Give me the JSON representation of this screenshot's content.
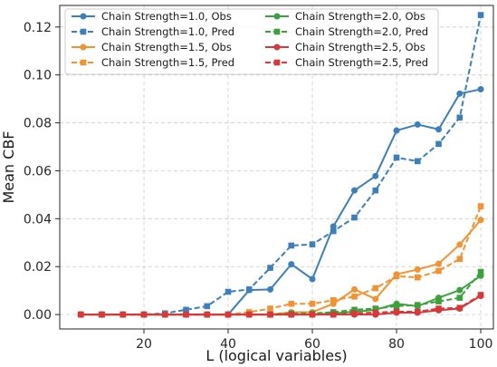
{
  "chart_data": {
    "type": "line",
    "xlabel": "L (logical variables)",
    "ylabel": "Mean CBF",
    "xlim": [
      0,
      103
    ],
    "ylim": [
      -0.006,
      0.129
    ],
    "xticks": [
      20,
      40,
      60,
      80,
      100
    ],
    "yticks": [
      0.0,
      0.02,
      0.04,
      0.06,
      0.08,
      0.1,
      0.12
    ],
    "ytick_labels": [
      "0.00",
      "0.02",
      "0.04",
      "0.06",
      "0.08",
      "0.10",
      "0.12"
    ],
    "grid": true,
    "legend_position": "top-left",
    "x": [
      5,
      10,
      15,
      20,
      25,
      30,
      35,
      40,
      45,
      50,
      55,
      60,
      65,
      70,
      75,
      80,
      85,
      90,
      95,
      100
    ],
    "series": [
      {
        "name": "Chain Strength=1.0, Obs",
        "color": "#3a7fbf",
        "style": "solid",
        "marker": "circle",
        "values": [
          0,
          0,
          0,
          0,
          0,
          0,
          0,
          0,
          0.0102,
          0.0105,
          0.021,
          0.0148,
          0.0368,
          0.0518,
          0.0578,
          0.0768,
          0.0793,
          0.0773,
          0.0922,
          0.094
        ]
      },
      {
        "name": "Chain Strength=1.0, Pred",
        "color": "#3a7fbf",
        "style": "dashed",
        "marker": "square",
        "values": [
          0,
          0,
          0,
          0,
          0.0005,
          0.002,
          0.0035,
          0.0095,
          0.0105,
          0.0195,
          0.0288,
          0.0293,
          0.0348,
          0.0405,
          0.0518,
          0.0655,
          0.064,
          0.0712,
          0.0822,
          0.125
        ]
      },
      {
        "name": "Chain Strength=1.5, Obs",
        "color": "#f5922f",
        "style": "solid",
        "marker": "circle",
        "values": [
          0,
          0,
          0,
          0,
          0,
          0,
          0,
          0,
          0,
          0,
          0.001,
          0.001,
          0.0045,
          0.0105,
          0.0065,
          0.0168,
          0.0188,
          0.0212,
          0.0292,
          0.0395
        ]
      },
      {
        "name": "Chain Strength=1.5, Pred",
        "color": "#f5922f",
        "style": "dashed",
        "marker": "square",
        "values": [
          0,
          0,
          0,
          0,
          0,
          0,
          0,
          0,
          0.001,
          0.0025,
          0.0045,
          0.0045,
          0.006,
          0.0075,
          0.011,
          0.016,
          0.0155,
          0.0182,
          0.0232,
          0.0452
        ]
      },
      {
        "name": "Chain Strength=2.0, Obs",
        "color": "#3aa23a",
        "style": "solid",
        "marker": "circle",
        "values": [
          0,
          0,
          0,
          0,
          0,
          0,
          0,
          0,
          0,
          0,
          0,
          0,
          0.0005,
          0.0012,
          0.002,
          0.0045,
          0.0035,
          0.007,
          0.0102,
          0.0162
        ]
      },
      {
        "name": "Chain Strength=2.0, Pred",
        "color": "#3aa23a",
        "style": "dashed",
        "marker": "square",
        "values": [
          0,
          0,
          0,
          0,
          0,
          0,
          0,
          0,
          0,
          0,
          0.0005,
          0.0005,
          0.001,
          0.002,
          0.0025,
          0.0035,
          0.004,
          0.0055,
          0.007,
          0.0178
        ]
      },
      {
        "name": "Chain Strength=2.5, Obs",
        "color": "#d9373a",
        "style": "solid",
        "marker": "circle",
        "values": [
          0,
          0,
          0,
          0,
          0,
          0,
          0,
          0,
          0,
          0,
          0,
          0,
          0,
          0,
          0,
          0.0008,
          0.0008,
          0.0018,
          0.0025,
          0.0078
        ]
      },
      {
        "name": "Chain Strength=2.5, Pred",
        "color": "#d9373a",
        "style": "dashed",
        "marker": "square",
        "values": [
          0,
          0,
          0,
          0,
          0,
          0,
          0,
          0,
          0,
          0,
          0,
          0,
          0,
          0.0005,
          0.0008,
          0.0012,
          0.0012,
          0.0025,
          0.0028,
          0.0082
        ]
      }
    ]
  }
}
